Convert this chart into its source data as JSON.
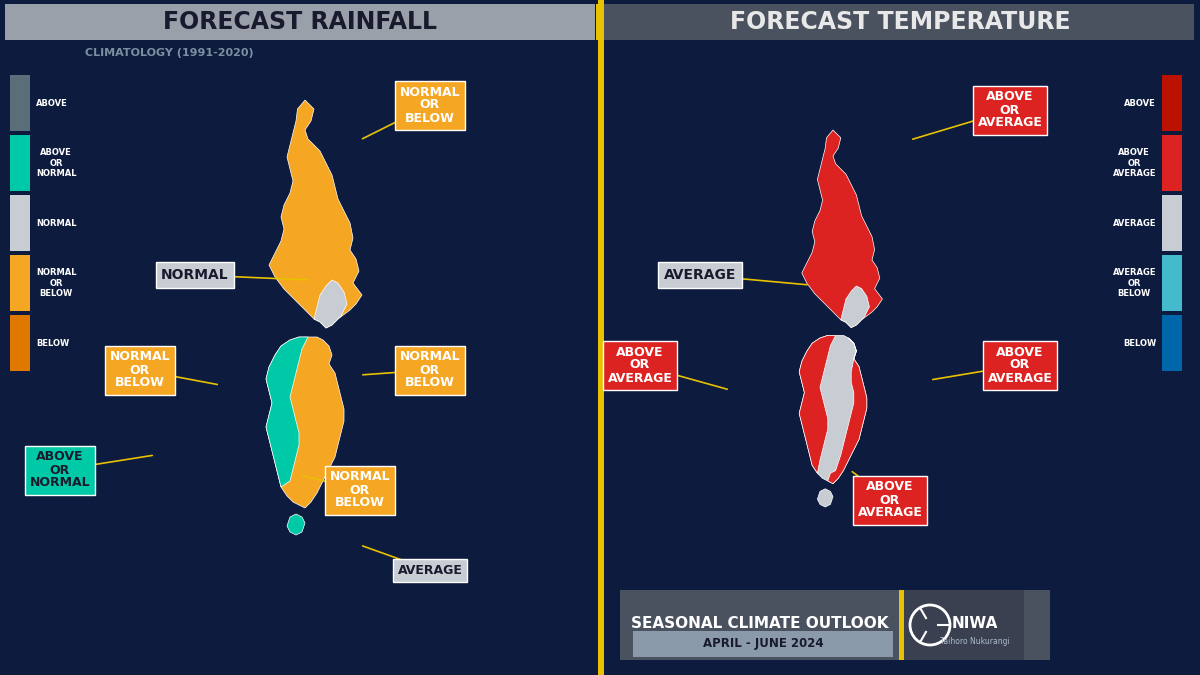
{
  "bg_color": "#0d1b3e",
  "title_left": "FORECAST RAINFALL",
  "title_right": "FORECAST TEMPERATURE",
  "subtitle_left": "CLIMATOLOGY (1991-2020)",
  "left_header_bg": "#9aa0aa",
  "right_header_bg": "#4a5260",
  "header_text_color_left": "#1a1a2e",
  "header_text_color_right": "#e8e8e8",
  "yellow_accent": "#e8c200",
  "rain_colors": {
    "above": "#5a6e7a",
    "above_or_normal": "#00c9a7",
    "normal": "#c8cdd4",
    "normal_or_below": "#f5a623",
    "below": "#e07800"
  },
  "temp_colors": {
    "above": "#bb1100",
    "above_or_average": "#dd2222",
    "average": "#c8cdd4",
    "average_or_below": "#44bbcc",
    "below": "#0066aa"
  },
  "footer_text": "SEASONAL CLIMATE OUTLOOK",
  "footer_date": "APRIL - JUNE 2024",
  "footer_bg": "#4a5260",
  "date_bg": "#8a9aaa",
  "niwa_bg": "#3a4050"
}
